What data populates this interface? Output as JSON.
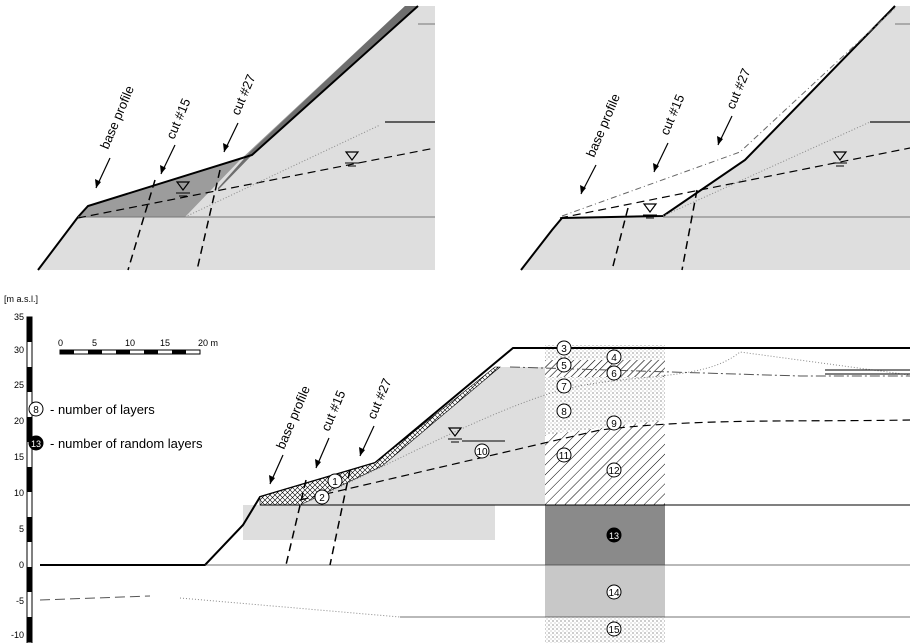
{
  "top_left": {
    "labels": {
      "base": "base profile",
      "cut15": "cut #15",
      "cut27": "cut #27"
    }
  },
  "top_right": {
    "labels": {
      "base": "base profile",
      "cut15": "cut #15",
      "cut27": "cut #27"
    }
  },
  "main": {
    "unit_label": "[m a.s.l.]",
    "axis_ticks": [
      "35",
      "30",
      "25",
      "20",
      "15",
      "10",
      "5",
      "0",
      "-5",
      "-10"
    ],
    "scale_bar": {
      "ticks": [
        "0",
        "5",
        "10",
        "15",
        "20 m"
      ]
    },
    "legend": [
      {
        "marker": "8",
        "text": "- number of layers"
      },
      {
        "marker": "13",
        "text": "- number of random layers"
      }
    ],
    "profile_labels": {
      "base": "base profile",
      "cut15": "cut #15",
      "cut27": "cut #27"
    },
    "layer_numbers": [
      "1",
      "2",
      "3",
      "4",
      "5",
      "6",
      "7",
      "8",
      "9",
      "10",
      "11",
      "12",
      "13",
      "14",
      "15"
    ]
  },
  "colors": {
    "ground_light": "#dedede",
    "ground_dark": "#6e6e6e",
    "random_layer": "#8a8a8a",
    "layer_14": "#c8c8c8"
  }
}
